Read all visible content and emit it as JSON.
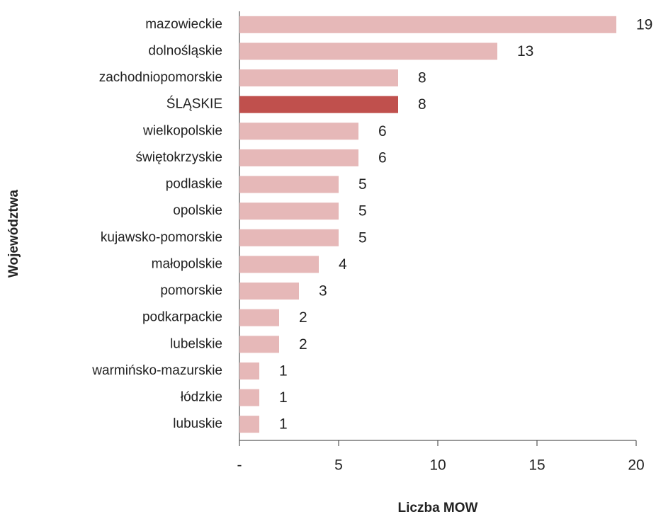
{
  "chart_data": {
    "type": "bar",
    "orientation": "horizontal",
    "x_label": "Liczba MOW",
    "y_label": "Województwa",
    "categories": [
      "mazowieckie",
      "dolnośląskie",
      "zachodniopomorskie",
      "ŚLĄSKIE",
      "wielkopolskie",
      "świętokrzyskie",
      "podlaskie",
      "opolskie",
      "kujawsko-pomorskie",
      "małopolskie",
      "pomorskie",
      "podkarpackie",
      "lubelskie",
      "warmińsko-mazurskie",
      "łódzkie",
      "lubuskie"
    ],
    "values": [
      19,
      13,
      8,
      8,
      6,
      6,
      5,
      5,
      5,
      4,
      3,
      2,
      2,
      1,
      1,
      1
    ],
    "colors": [
      "#e6b8b8",
      "#e6b8b8",
      "#e6b8b8",
      "#c0504d",
      "#e6b8b8",
      "#e6b8b8",
      "#e6b8b8",
      "#e6b8b8",
      "#e6b8b8",
      "#e6b8b8",
      "#e6b8b8",
      "#e6b8b8",
      "#e6b8b8",
      "#e6b8b8",
      "#e6b8b8",
      "#e6b8b8"
    ],
    "xlim": [
      0,
      20
    ],
    "xticks": [
      {
        "value": 0,
        "label": "-"
      },
      5,
      10,
      15,
      20
    ],
    "grid": false
  }
}
